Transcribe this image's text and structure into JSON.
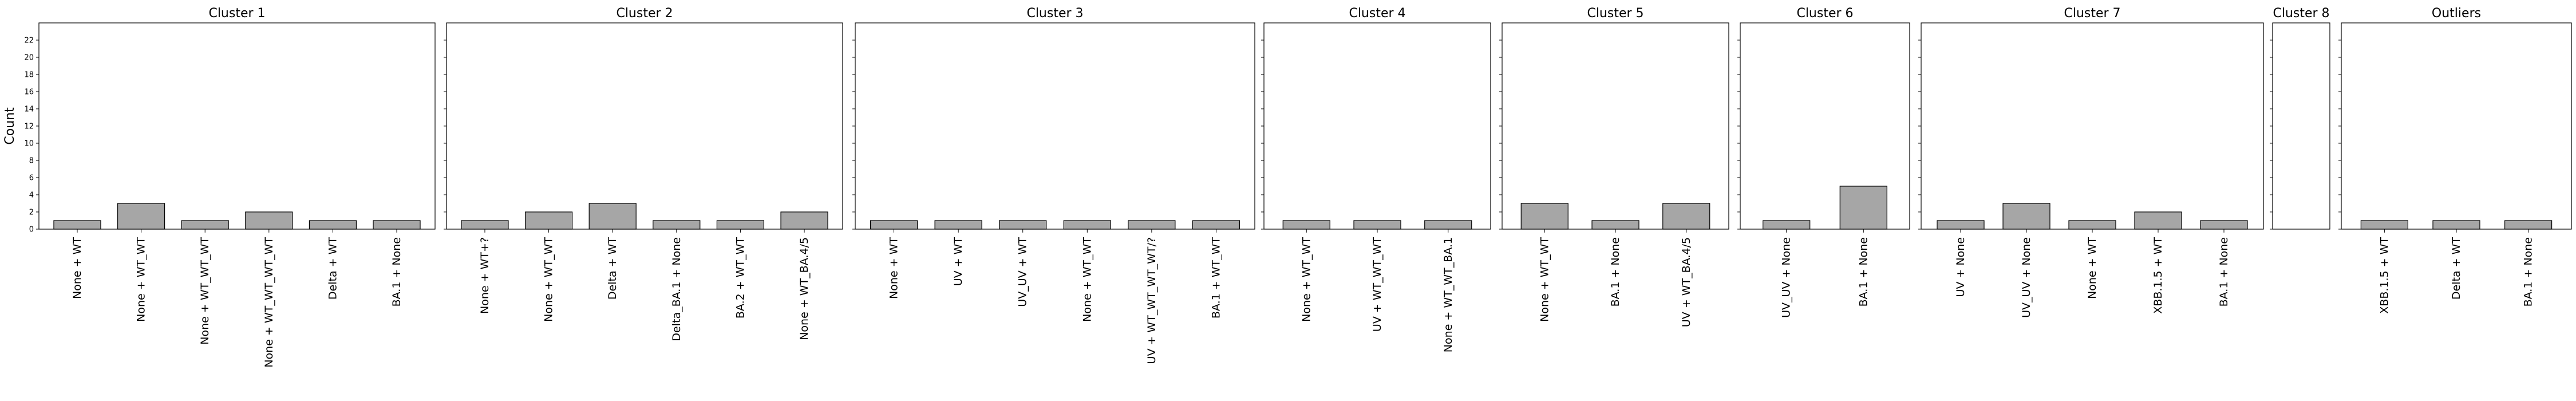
{
  "chart_data": {
    "type": "bar",
    "ylabel": "Count",
    "ylim": [
      0,
      24
    ],
    "yticks": [
      0,
      2,
      4,
      6,
      8,
      10,
      12,
      14,
      16,
      18,
      20,
      22
    ],
    "bar_color": "#a6a6a6",
    "edge_color": "#000000",
    "panels": [
      {
        "title": "Cluster 1",
        "categories": [
          "None + WT",
          "None + WT_WT",
          "None + WT_WT_WT",
          "None + WT_WT_WT_WT",
          "Delta + WT",
          "BA.1 + None"
        ],
        "values": [
          1,
          3,
          1,
          2,
          1,
          1
        ]
      },
      {
        "title": "Cluster 2",
        "categories": [
          "None + WT+?",
          "None + WT_WT",
          "Delta + WT",
          "Delta_BA.1 + None",
          "BA.2 + WT_WT",
          "None + WT_BA.4/5"
        ],
        "values": [
          1,
          2,
          3,
          1,
          1,
          2
        ]
      },
      {
        "title": "Cluster 3",
        "categories": [
          "None + WT",
          "UV + WT",
          "UV_UV + WT",
          "None + WT_WT",
          "UV + WT_WT_WT_WT/?",
          "BA.1 + WT_WT"
        ],
        "values": [
          1,
          1,
          1,
          1,
          1,
          1
        ]
      },
      {
        "title": "Cluster 4",
        "categories": [
          "None + WT_WT",
          "UV + WT_WT_WT",
          "None + WT_WT_BA.1"
        ],
        "values": [
          1,
          1,
          1
        ]
      },
      {
        "title": "Cluster 5",
        "categories": [
          "None + WT_WT",
          "BA.1 + None",
          "UV + WT_BA.4/5"
        ],
        "values": [
          3,
          1,
          3
        ]
      },
      {
        "title": "Cluster 6",
        "categories": [
          "UV_UV + None",
          "BA.1 + None"
        ],
        "values": [
          1,
          5
        ]
      },
      {
        "title": "Cluster 7",
        "categories": [
          "UV + None",
          "UV_UV + None",
          "None + WT",
          "XBB.1.5 + WT",
          "BA.1 + None"
        ],
        "values": [
          1,
          3,
          1,
          2,
          1
        ]
      },
      {
        "title": "Cluster 8",
        "categories": [],
        "values": []
      },
      {
        "title": "Outliers",
        "categories": [
          "XBB.1.5 + WT",
          "Delta + WT",
          "BA.1 + None"
        ],
        "values": [
          1,
          1,
          1
        ]
      }
    ]
  }
}
